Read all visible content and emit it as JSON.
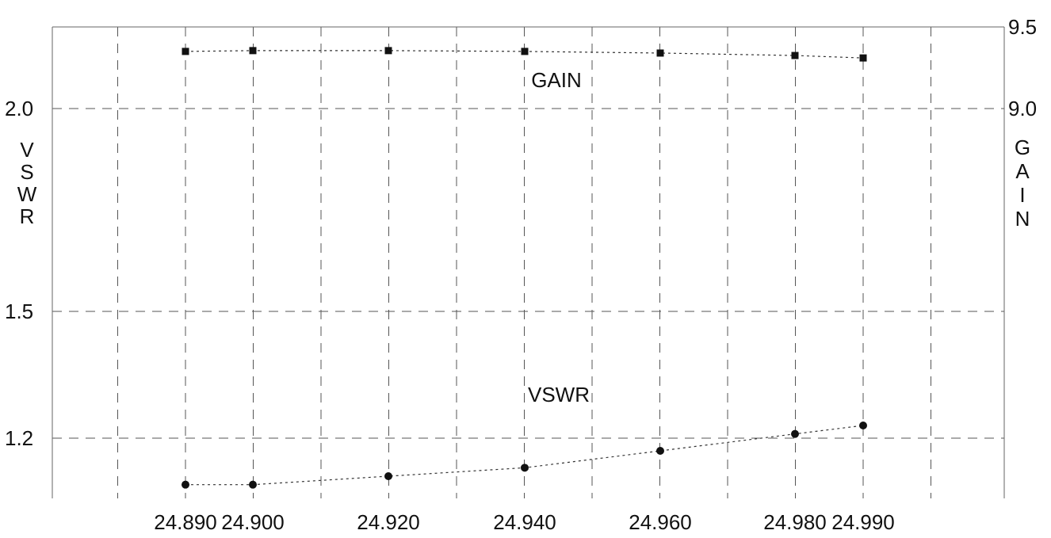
{
  "chart_data": {
    "type": "line",
    "x": [
      24.89,
      24.9,
      24.92,
      24.94,
      24.96,
      24.98,
      24.99
    ],
    "x_tick_labels": [
      "24.890",
      "24.900",
      "24.920",
      "24.940",
      "24.960",
      "24.980",
      "24.990"
    ],
    "left_axis": {
      "title": "VSWR",
      "tick_values": [
        2.0,
        1.5,
        1.2
      ],
      "tick_labels": [
        "2.0",
        "1.5",
        "1.2"
      ]
    },
    "right_axis": {
      "title": "GAIN",
      "tick_values": [
        9.5,
        9.0
      ],
      "tick_labels": [
        "9.5",
        "9.0"
      ]
    },
    "series": [
      {
        "name": "GAIN",
        "axis": "right",
        "marker": "square",
        "values": [
          9.35,
          9.355,
          9.355,
          9.35,
          9.34,
          9.325,
          9.31
        ]
      },
      {
        "name": "VSWR",
        "axis": "left",
        "marker": "circle",
        "values": [
          1.09,
          1.09,
          1.11,
          1.13,
          1.17,
          1.21,
          1.23
        ]
      }
    ],
    "grid": true,
    "colors": {
      "marks": "#111111",
      "grid": "#555555"
    }
  }
}
